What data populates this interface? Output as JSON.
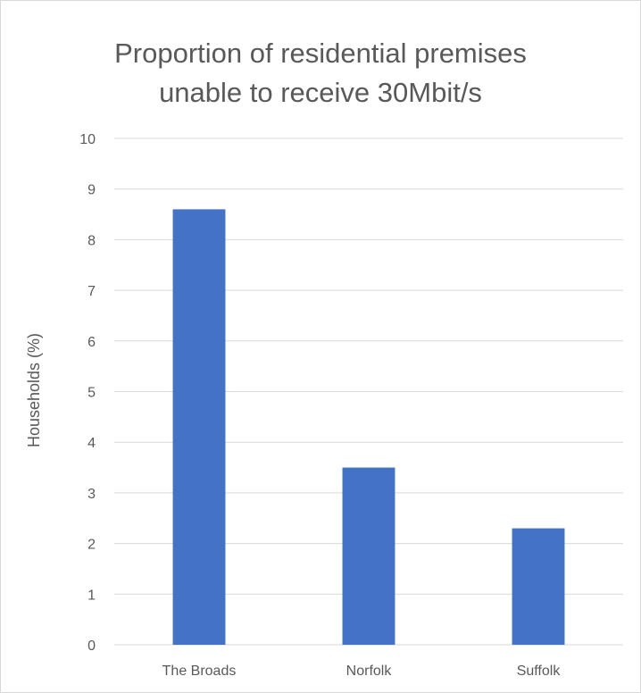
{
  "chart_data": {
    "type": "bar",
    "title": "Proportion of residential premises\nunable to receive 30Mbit/s",
    "xlabel": "",
    "ylabel": "Households (%)",
    "categories": [
      "The Broads",
      "Norfolk",
      "Suffolk"
    ],
    "values": [
      8.6,
      3.5,
      2.3
    ],
    "ylim": [
      0,
      10
    ],
    "yticks": [
      "0",
      "1",
      "2",
      "3",
      "4",
      "5",
      "6",
      "7",
      "8",
      "9",
      "10"
    ],
    "grid": true,
    "legend": "none",
    "bar_color": "#4472c4",
    "grid_color": "#d9d9d9",
    "text_color": "#595959"
  }
}
